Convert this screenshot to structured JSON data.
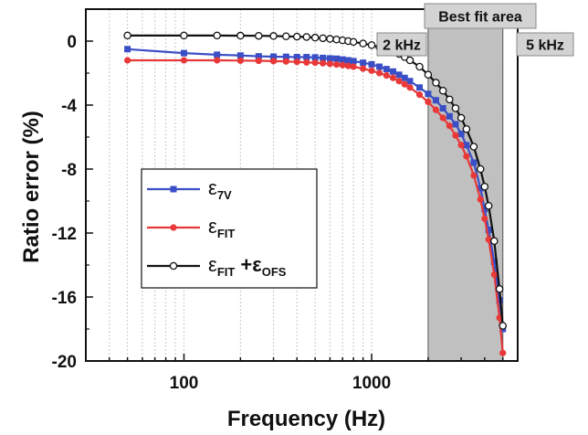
{
  "chart_data": {
    "type": "line",
    "xlabel": "Frequency (Hz)",
    "ylabel": "Ratio error (%)",
    "xscale": "log",
    "xlim": [
      30,
      6000
    ],
    "ylim": [
      -20,
      2
    ],
    "x_ticks": [
      {
        "value": 100,
        "label": "100"
      },
      {
        "value": 1000,
        "label": "1000"
      }
    ],
    "y_ticks": [
      {
        "value": 0,
        "label": "0"
      },
      {
        "value": -4,
        "label": "-4"
      },
      {
        "value": -8,
        "label": "-8"
      },
      {
        "value": -12,
        "label": "-12"
      },
      {
        "value": -16,
        "label": "-16"
      },
      {
        "value": -20,
        "label": "-20"
      }
    ],
    "grid": "vertical minor and major dotted lines at log positions",
    "legend_position": "middle-left",
    "x": [
      50,
      100,
      150,
      200,
      250,
      300,
      350,
      400,
      450,
      500,
      550,
      600,
      650,
      700,
      750,
      800,
      900,
      1000,
      1100,
      1200,
      1300,
      1400,
      1500,
      1600,
      1800,
      2000,
      2200,
      2400,
      2600,
      2800,
      3000,
      3200,
      3500,
      3800,
      4000,
      4200,
      4500,
      4800,
      5000
    ],
    "series": [
      {
        "name": "ε7V",
        "label_main": "ε",
        "label_sub": "7V",
        "color": "#3a4fc6",
        "marker": "square",
        "values": [
          -0.5,
          -0.75,
          -0.85,
          -0.9,
          -0.95,
          -0.97,
          -0.98,
          -1.0,
          -1.0,
          -1.02,
          -1.05,
          -1.08,
          -1.1,
          -1.15,
          -1.2,
          -1.25,
          -1.35,
          -1.45,
          -1.6,
          -1.75,
          -1.9,
          -2.1,
          -2.3,
          -2.5,
          -2.9,
          -3.3,
          -3.7,
          -4.2,
          -4.7,
          -5.2,
          -5.8,
          -6.5,
          -7.6,
          -9.2,
          -10.5,
          -11.8,
          -13.8,
          -16.2,
          -18.0
        ]
      },
      {
        "name": "εFIT",
        "label_main": "ε",
        "label_sub": "FIT",
        "color": "#e83838",
        "marker": "circle-filled",
        "values": [
          -1.2,
          -1.2,
          -1.2,
          -1.22,
          -1.23,
          -1.25,
          -1.27,
          -1.3,
          -1.33,
          -1.35,
          -1.38,
          -1.42,
          -1.46,
          -1.5,
          -1.55,
          -1.6,
          -1.72,
          -1.85,
          -2.0,
          -2.15,
          -2.3,
          -2.5,
          -2.7,
          -2.9,
          -3.35,
          -3.8,
          -4.3,
          -4.8,
          -5.3,
          -5.9,
          -6.5,
          -7.2,
          -8.4,
          -9.9,
          -11.1,
          -12.4,
          -14.6,
          -17.3,
          -19.5
        ]
      },
      {
        "name": "εFIT + εOFS",
        "label_main": "ε",
        "label_sub": "FIT",
        "label_main2": " +ε",
        "label_sub2": "OFS",
        "color": "#111111",
        "marker": "circle-open",
        "values": [
          0.35,
          0.35,
          0.35,
          0.34,
          0.33,
          0.32,
          0.3,
          0.28,
          0.26,
          0.22,
          0.18,
          0.14,
          0.1,
          0.05,
          0.0,
          -0.05,
          -0.15,
          -0.25,
          -0.38,
          -0.5,
          -0.65,
          -0.8,
          -1.0,
          -1.2,
          -1.6,
          -2.1,
          -2.6,
          -3.1,
          -3.65,
          -4.2,
          -4.8,
          -5.5,
          -6.6,
          -8.0,
          -9.1,
          -10.3,
          -12.5,
          -15.5,
          -17.8
        ]
      }
    ],
    "annotations": [
      {
        "label": "Best fit area",
        "x_from": 2000,
        "x_to": 5000,
        "shade": "#c0c0c0"
      },
      {
        "label": "2 kHz",
        "x": 2000
      },
      {
        "label": "5 kHz",
        "x": 5000
      }
    ]
  }
}
